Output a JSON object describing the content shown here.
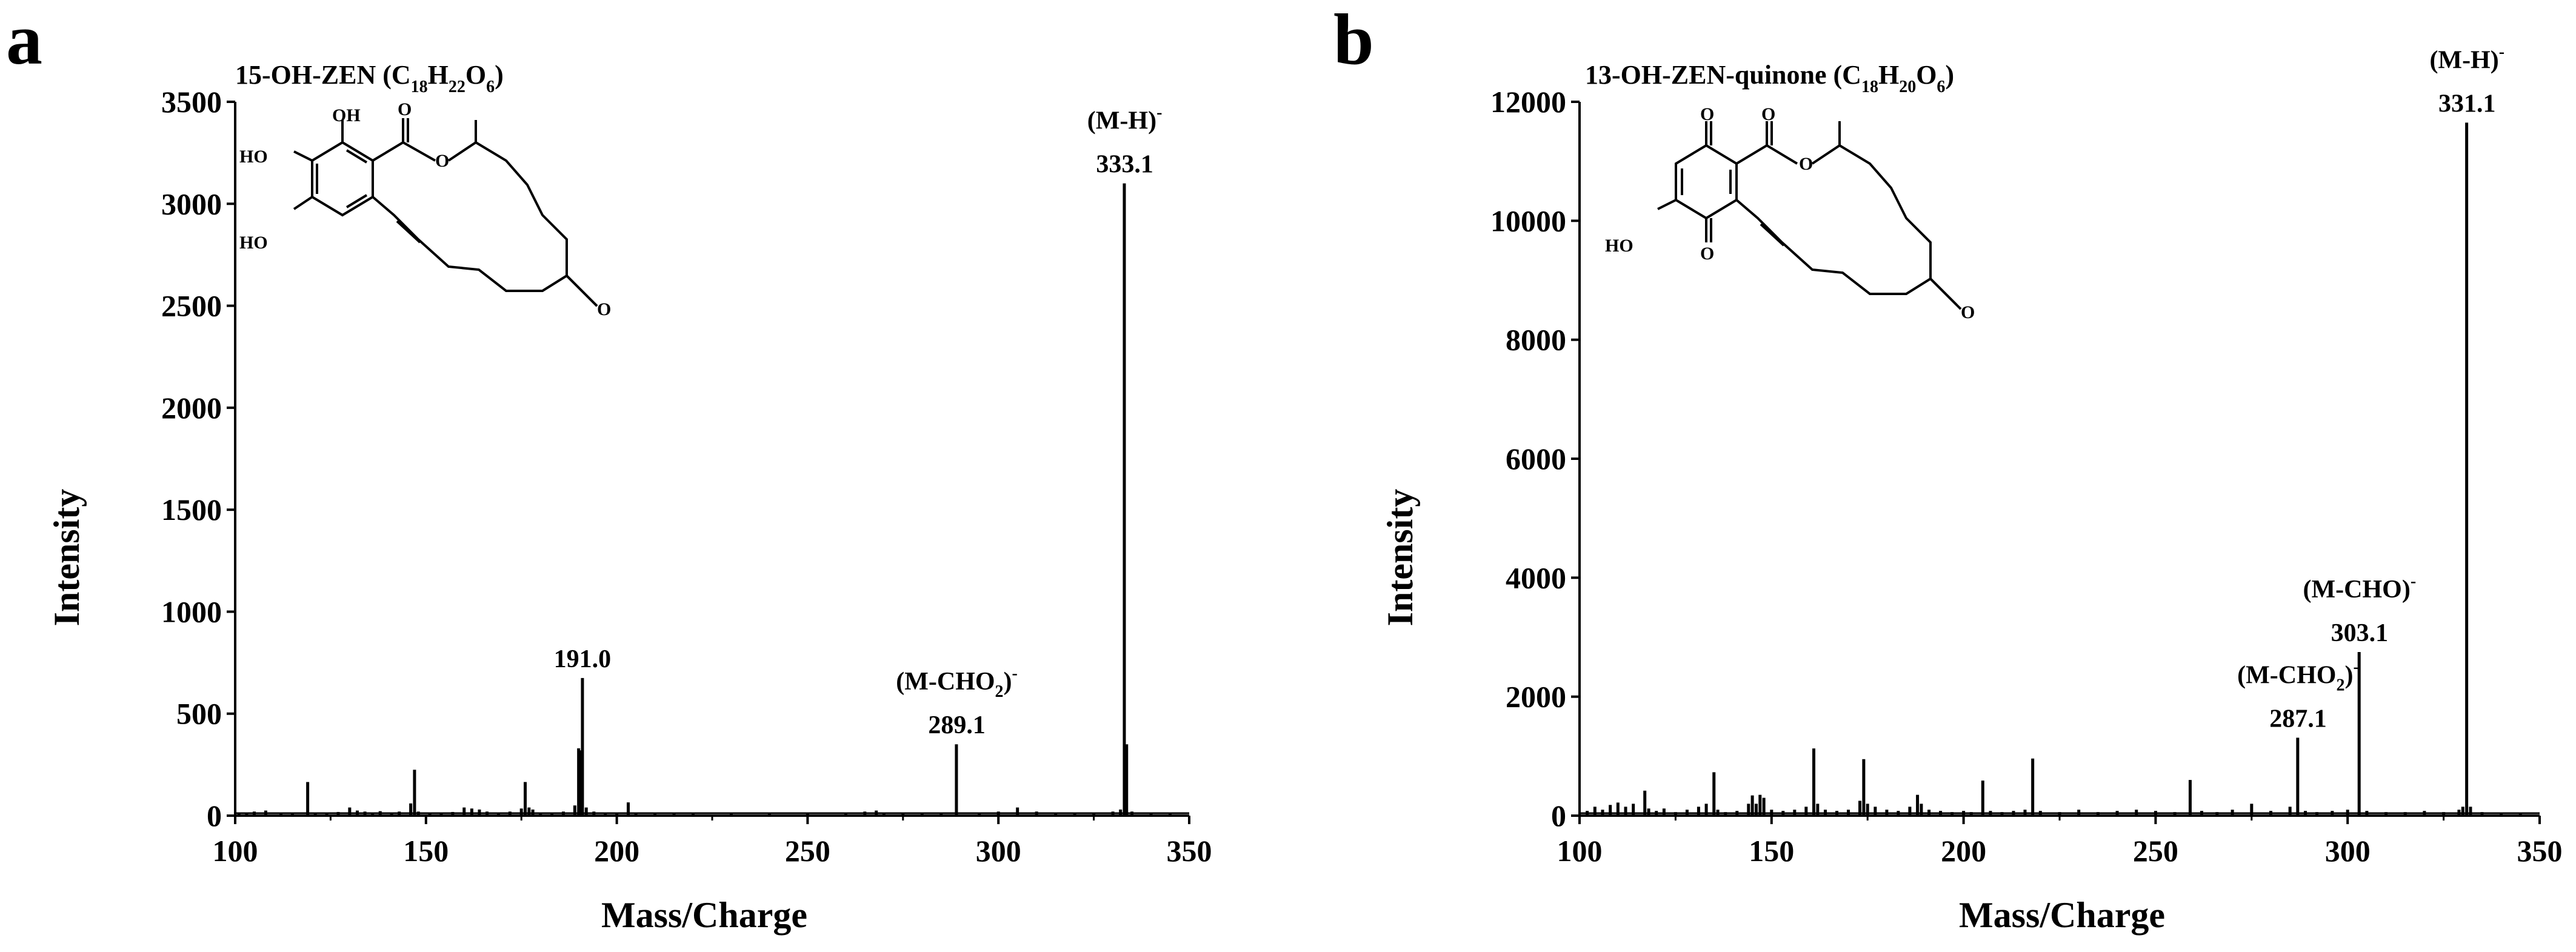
{
  "colors": {
    "stroke": "#000000",
    "background": "#ffffff"
  },
  "chart_data": [
    {
      "type": "bar",
      "panel": "a",
      "title_main": "15-OH-ZEN (C",
      "title_sub1": "18",
      "title_mid1": "H",
      "title_sub2": "22",
      "title_mid2": "O",
      "title_sub3": "6",
      "title_end": ")",
      "xlabel": "Mass/Charge",
      "ylabel": "Intensity",
      "xlim": [
        100,
        350
      ],
      "ylim": [
        0,
        3500
      ],
      "xticks": [
        100,
        150,
        200,
        250,
        300,
        350
      ],
      "yticks": [
        0,
        500,
        1000,
        1500,
        2000,
        2500,
        3000,
        3500
      ],
      "molecule": {
        "atoms": [
          {
            "label": "OH"
          },
          {
            "label": "O"
          },
          {
            "label": "HO"
          },
          {
            "label": "HO"
          },
          {
            "label": "O"
          },
          {
            "label": "O"
          }
        ]
      },
      "peaks": [
        [
          101,
          15
        ],
        [
          103,
          10
        ],
        [
          105,
          20
        ],
        [
          108,
          25
        ],
        [
          112,
          15
        ],
        [
          115,
          10
        ],
        [
          119,
          165
        ],
        [
          121,
          15
        ],
        [
          124,
          12
        ],
        [
          127,
          18
        ],
        [
          130,
          40
        ],
        [
          132,
          25
        ],
        [
          134,
          20
        ],
        [
          136,
          15
        ],
        [
          138,
          22
        ],
        [
          141,
          15
        ],
        [
          143,
          20
        ],
        [
          146,
          60
        ],
        [
          147,
          225
        ],
        [
          148,
          20
        ],
        [
          151,
          15
        ],
        [
          154,
          12
        ],
        [
          157,
          18
        ],
        [
          160,
          40
        ],
        [
          162,
          35
        ],
        [
          164,
          30
        ],
        [
          166,
          20
        ],
        [
          169,
          15
        ],
        [
          172,
          20
        ],
        [
          175,
          35
        ],
        [
          176,
          165
        ],
        [
          177,
          40
        ],
        [
          178,
          30
        ],
        [
          180,
          15
        ],
        [
          183,
          15
        ],
        [
          186,
          20
        ],
        [
          189,
          50
        ],
        [
          190,
          330
        ],
        [
          190.6,
          320
        ],
        [
          191,
          675
        ],
        [
          192,
          40
        ],
        [
          194,
          20
        ],
        [
          197,
          15
        ],
        [
          200,
          15
        ],
        [
          203,
          65
        ],
        [
          205,
          15
        ],
        [
          210,
          10
        ],
        [
          215,
          10
        ],
        [
          220,
          8
        ],
        [
          230,
          10
        ],
        [
          240,
          8
        ],
        [
          250,
          10
        ],
        [
          260,
          15
        ],
        [
          265,
          20
        ],
        [
          268,
          25
        ],
        [
          270,
          15
        ],
        [
          275,
          10
        ],
        [
          280,
          15
        ],
        [
          285,
          12
        ],
        [
          289,
          350
        ],
        [
          295,
          15
        ],
        [
          300,
          20
        ],
        [
          305,
          40
        ],
        [
          310,
          20
        ],
        [
          315,
          15
        ],
        [
          320,
          10
        ],
        [
          325,
          15
        ],
        [
          330,
          20
        ],
        [
          332,
          30
        ],
        [
          333,
          3100
        ],
        [
          333.6,
          350
        ],
        [
          335,
          20
        ],
        [
          340,
          15
        ],
        [
          345,
          10
        ]
      ],
      "annotations": [
        {
          "x": 191.0,
          "y": 675,
          "text": "191.0",
          "ion": ""
        },
        {
          "x": 289.1,
          "y": 350,
          "text": "289.1",
          "ion_main": "(M-CHO",
          "ion_sub": "2",
          "ion_end": ")",
          "ion_sup": "-"
        },
        {
          "x": 333.1,
          "y": 3100,
          "text": "333.1",
          "ion_main": "(M-H)",
          "ion_sub": "",
          "ion_end": "",
          "ion_sup": "-"
        }
      ]
    },
    {
      "type": "bar",
      "panel": "b",
      "title_main": "13-OH-ZEN-quinone (C",
      "title_sub1": "18",
      "title_mid1": "H",
      "title_sub2": "20",
      "title_mid2": "O",
      "title_sub3": "6",
      "title_end": ")",
      "xlabel": "Mass/Charge",
      "ylabel": "Intensity",
      "xlim": [
        100,
        350
      ],
      "ylim": [
        0,
        12000
      ],
      "xticks": [
        100,
        150,
        200,
        250,
        300,
        350
      ],
      "yticks": [
        0,
        2000,
        4000,
        6000,
        8000,
        10000,
        12000
      ],
      "molecule": {
        "atoms": [
          {
            "label": "O"
          },
          {
            "label": "O"
          },
          {
            "label": "O"
          },
          {
            "label": "HO"
          },
          {
            "label": "O"
          },
          {
            "label": "O"
          }
        ]
      },
      "peaks": [
        [
          102,
          80
        ],
        [
          104,
          150
        ],
        [
          106,
          100
        ],
        [
          108,
          180
        ],
        [
          110,
          220
        ],
        [
          112,
          150
        ],
        [
          114,
          200
        ],
        [
          117,
          420
        ],
        [
          118,
          120
        ],
        [
          120,
          80
        ],
        [
          122,
          120
        ],
        [
          125,
          60
        ],
        [
          128,
          100
        ],
        [
          131,
          150
        ],
        [
          133,
          200
        ],
        [
          135,
          730
        ],
        [
          136,
          100
        ],
        [
          138,
          60
        ],
        [
          141,
          80
        ],
        [
          144,
          200
        ],
        [
          145,
          340
        ],
        [
          146,
          200
        ],
        [
          147,
          350
        ],
        [
          148,
          300
        ],
        [
          150,
          100
        ],
        [
          153,
          80
        ],
        [
          156,
          100
        ],
        [
          159,
          150
        ],
        [
          161,
          1130
        ],
        [
          162,
          200
        ],
        [
          164,
          100
        ],
        [
          167,
          80
        ],
        [
          170,
          100
        ],
        [
          173,
          250
        ],
        [
          174,
          950
        ],
        [
          175,
          200
        ],
        [
          177,
          150
        ],
        [
          180,
          100
        ],
        [
          183,
          80
        ],
        [
          186,
          150
        ],
        [
          188,
          350
        ],
        [
          189,
          200
        ],
        [
          191,
          100
        ],
        [
          194,
          80
        ],
        [
          197,
          60
        ],
        [
          200,
          80
        ],
        [
          202,
          60
        ],
        [
          205,
          590
        ],
        [
          207,
          80
        ],
        [
          210,
          60
        ],
        [
          213,
          80
        ],
        [
          216,
          100
        ],
        [
          218,
          960
        ],
        [
          220,
          80
        ],
        [
          225,
          60
        ],
        [
          230,
          100
        ],
        [
          235,
          60
        ],
        [
          240,
          80
        ],
        [
          245,
          100
        ],
        [
          250,
          80
        ],
        [
          255,
          60
        ],
        [
          259,
          600
        ],
        [
          262,
          80
        ],
        [
          266,
          60
        ],
        [
          270,
          100
        ],
        [
          275,
          200
        ],
        [
          280,
          80
        ],
        [
          285,
          150
        ],
        [
          287,
          1310
        ],
        [
          289,
          80
        ],
        [
          292,
          60
        ],
        [
          296,
          80
        ],
        [
          300,
          100
        ],
        [
          303,
          2750
        ],
        [
          305,
          80
        ],
        [
          310,
          60
        ],
        [
          315,
          60
        ],
        [
          320,
          80
        ],
        [
          325,
          60
        ],
        [
          329,
          100
        ],
        [
          330,
          150
        ],
        [
          331,
          11650
        ],
        [
          332,
          150
        ],
        [
          335,
          60
        ],
        [
          340,
          40
        ],
        [
          345,
          30
        ]
      ],
      "annotations": [
        {
          "x": 287.1,
          "y": 1310,
          "text": "287.1",
          "ion_main": "(M-CHO",
          "ion_sub": "2",
          "ion_end": ")",
          "ion_sup": "-"
        },
        {
          "x": 303.1,
          "y": 2750,
          "text": "303.1",
          "ion_main": "(M-CHO)",
          "ion_sub": "",
          "ion_end": "",
          "ion_sup": "-"
        },
        {
          "x": 331.1,
          "y": 11650,
          "text": "331.1",
          "ion_main": "(M-H)",
          "ion_sub": "",
          "ion_end": "",
          "ion_sup": "-"
        }
      ]
    }
  ]
}
